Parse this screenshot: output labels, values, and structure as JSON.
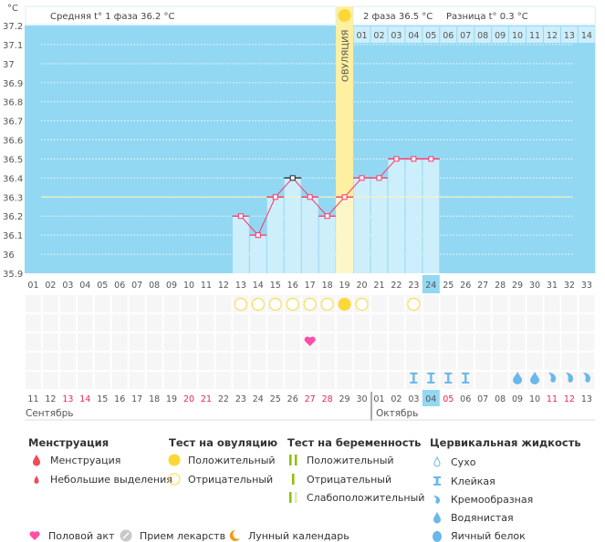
{
  "axis": {
    "unit": "°С",
    "y_ticks": [
      "37.2",
      "37.1",
      "37",
      "36.9",
      "36.8",
      "36.7",
      "36.6",
      "36.5",
      "36.4",
      "36.3",
      "36.2",
      "36.1",
      "36",
      "35.9"
    ]
  },
  "header": {
    "phase1_label": "Средняя t° 1 фаза 36.2 °С",
    "phase2_label": "2 фаза 36.5 °С",
    "diff_label": "Разница t° 0.3 °С",
    "ovulation_label": "ОВУЛЯЦИЯ",
    "phase2_days": [
      "01",
      "02",
      "03",
      "04",
      "05",
      "06",
      "07",
      "08",
      "09",
      "10",
      "11",
      "12",
      "13",
      "14"
    ]
  },
  "chart_data": {
    "type": "line",
    "ylim": [
      35.9,
      37.2
    ],
    "cycle_days": [
      "01",
      "02",
      "03",
      "04",
      "05",
      "06",
      "07",
      "08",
      "09",
      "10",
      "11",
      "12",
      "13",
      "14",
      "15",
      "16",
      "17",
      "18",
      "19",
      "20",
      "21",
      "22",
      "23",
      "24",
      "25",
      "26",
      "27",
      "28",
      "29",
      "30",
      "31",
      "32",
      "33"
    ],
    "temperatures": {
      "13": 36.2,
      "14": 36.1,
      "15": 36.3,
      "16": 36.4,
      "17": 36.3,
      "18": 36.2,
      "19": 36.3,
      "20": 36.4,
      "21": 36.4,
      "22": 36.5,
      "23": 36.5,
      "24": 36.5
    },
    "coverline": 36.3,
    "ovulation_day": 19,
    "today_day": 24
  },
  "calendar": {
    "dates": [
      "11",
      "12",
      "13",
      "14",
      "15",
      "16",
      "17",
      "18",
      "19",
      "20",
      "21",
      "22",
      "23",
      "24",
      "25",
      "26",
      "27",
      "28",
      "29",
      "30",
      "01",
      "02",
      "03",
      "04",
      "05",
      "06",
      "07",
      "08",
      "09",
      "10",
      "11",
      "12",
      "13"
    ],
    "weekend_days": [
      3,
      4,
      10,
      11,
      17,
      18,
      25,
      31,
      32
    ],
    "months": [
      "Сентябрь",
      "Октябрь"
    ]
  },
  "marks": {
    "ovulation_tests": {
      "13": "negative",
      "14": "negative",
      "15": "negative",
      "16": "negative",
      "17": "negative",
      "18": "negative",
      "19": "positive",
      "20": "negative",
      "23": "negative"
    },
    "intercourse": [
      17
    ],
    "cervical_fluid": {
      "23": "sticky",
      "24": "sticky",
      "25": "sticky",
      "26": "sticky",
      "29": "watery",
      "30": "watery",
      "31": "creamy",
      "32": "creamy",
      "33": "creamy"
    }
  },
  "colors": {
    "chart_bg": "#93d8f3",
    "bar": "#cdeefb",
    "line": "#ff3366",
    "ovulation": "#fdf0a0",
    "weekend": "#e8274f",
    "fluid": "#6ab8ea",
    "test_yellow": "#fdd835",
    "heart": "#ff4fa6",
    "preg": "#8cc000"
  },
  "legend": {
    "menstruation": {
      "title": "Менструация",
      "items": [
        "Менструация",
        "Небольшие выделения"
      ]
    },
    "ovulation_test": {
      "title": "Тест на овуляцию",
      "items": [
        "Положительный",
        "Отрицательный"
      ]
    },
    "pregnancy_test": {
      "title": "Тест на беременность",
      "items": [
        "Положительный",
        "Отрицательный",
        "Слабоположительный"
      ]
    },
    "cervical": {
      "title": "Цервикальная жидкость",
      "items": [
        "Сухо",
        "Клейкая",
        "Кремообразная",
        "Водянистая",
        "Яичный белок"
      ]
    },
    "bottom": [
      "Половой акт",
      "Прием лекарств",
      "Лунный календарь"
    ]
  }
}
